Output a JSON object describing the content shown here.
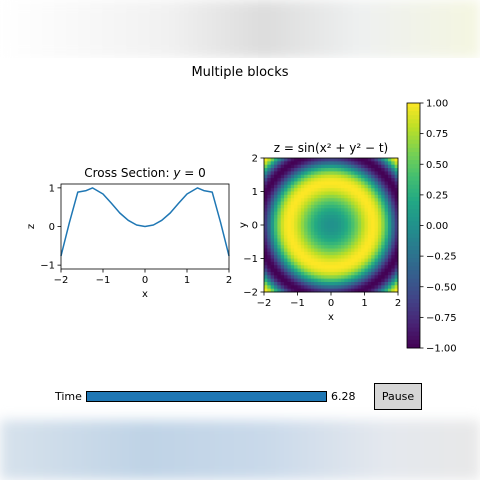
{
  "figure_title": "Multiple blocks",
  "chart_data": [
    {
      "type": "line",
      "title": "Cross Section: y = 0",
      "xlabel": "x",
      "ylabel": "z",
      "xlim": [
        -2,
        2
      ],
      "ylim": [
        -1.1,
        1.1
      ],
      "xticks": [
        -2,
        -1,
        0,
        1,
        2
      ],
      "yticks": [
        -1,
        0,
        1
      ],
      "series": [
        {
          "color": "#1f77b4",
          "x": [
            -2.0,
            -1.8,
            -1.6,
            -1.4,
            -1.25,
            -1.0,
            -0.8,
            -0.6,
            -0.4,
            -0.2,
            0.0,
            0.2,
            0.4,
            0.6,
            0.8,
            1.0,
            1.25,
            1.4,
            1.6,
            1.8,
            2.0
          ],
          "y": [
            -0.76,
            0.1,
            0.89,
            0.93,
            1.0,
            0.84,
            0.6,
            0.35,
            0.16,
            0.04,
            0.0,
            0.04,
            0.16,
            0.35,
            0.6,
            0.84,
            1.0,
            0.93,
            0.89,
            0.1,
            -0.76
          ]
        }
      ]
    },
    {
      "type": "heatmap",
      "title": "z = sin(x² + y² − t)",
      "xlabel": "x",
      "ylabel": "y",
      "xlim": [
        -2,
        2
      ],
      "ylim": [
        -2,
        2
      ],
      "xticks": [
        -2,
        -1,
        0,
        1,
        2
      ],
      "yticks": [
        -2,
        -1,
        0,
        1,
        2
      ],
      "t": 6.28,
      "function": "sin(x^2 + y^2 - t)",
      "colormap": "viridis",
      "colorbar": {
        "range": [
          -1.0,
          1.0
        ],
        "ticks": [
          "1.00",
          "0.75",
          "0.50",
          "0.25",
          "0.00",
          "−0.25",
          "−0.50",
          "−0.75",
          "−1.00"
        ]
      }
    }
  ],
  "controls": {
    "time_label": "Time",
    "time_value": "6.28",
    "time_fraction": 1.0,
    "pause_label": "Pause"
  }
}
